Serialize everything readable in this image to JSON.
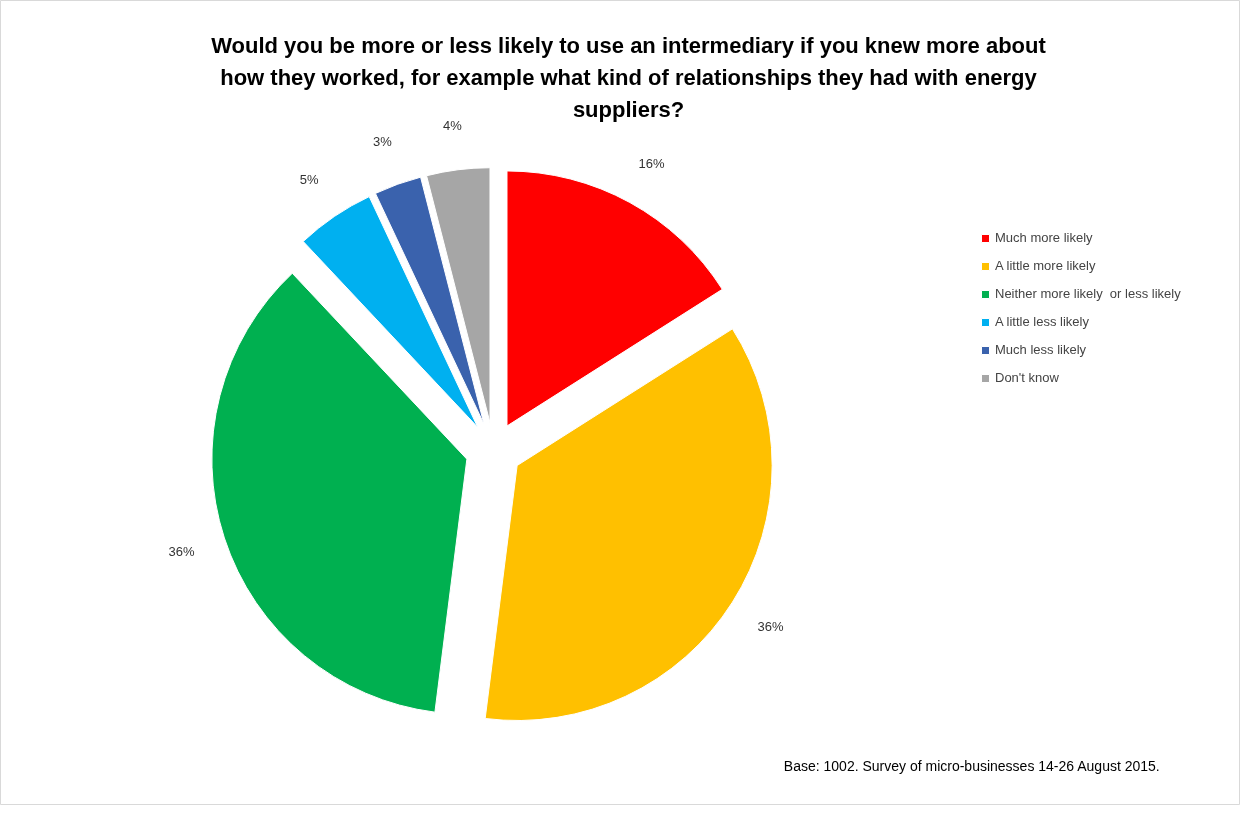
{
  "chart_data": {
    "type": "pie",
    "title": "Would you be more or less likely to use an intermediary if you knew more about how they worked, for example what kind of relationships they had with energy suppliers?",
    "categories": [
      "Much more likely",
      "A little more likely",
      "Neither more likely  or less likely",
      "A little less likely",
      "Much less likely",
      "Don't know"
    ],
    "values": [
      16,
      36,
      36,
      5,
      3,
      4
    ],
    "colors": [
      "#ff0000",
      "#ffc000",
      "#00b050",
      "#00b0f0",
      "#3a62ad",
      "#a6a6a6"
    ],
    "value_labels": [
      "16%",
      "36%",
      "36%",
      "5%",
      "3%",
      "4%"
    ],
    "legend": "right",
    "annotations": [
      "Base: 1002. Survey of micro-businesses 14-26 August 2015."
    ]
  }
}
